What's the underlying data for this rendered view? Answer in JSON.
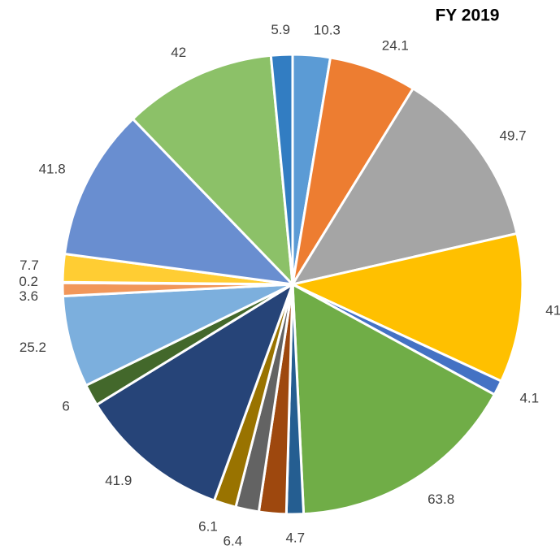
{
  "chart_data": {
    "type": "pie",
    "title": "FY 2019",
    "categories": [
      null,
      null,
      null,
      null,
      null,
      null,
      null,
      null,
      null,
      null,
      null,
      null,
      null,
      null,
      null,
      null,
      null,
      null,
      null
    ],
    "values": [
      10.3,
      24.1,
      49.7,
      41,
      4.1,
      63.8,
      4.7,
      7.5,
      6.4,
      6.1,
      41.9,
      6,
      25.2,
      3.6,
      0.2,
      7.7,
      41.8,
      42,
      5.9
    ],
    "colors": [
      "#5b9bd5",
      "#ed7d31",
      "#a5a5a5",
      "#ffc000",
      "#4472c4",
      "#70ad47",
      "#255e91",
      "#9e480e",
      "#636363",
      "#997300",
      "#264478",
      "#43682b",
      "#7cafdd",
      "#f1975a",
      "#b7b7b7",
      "#ffcd33",
      "#698ed0",
      "#8cc168",
      "#327dc2"
    ]
  }
}
